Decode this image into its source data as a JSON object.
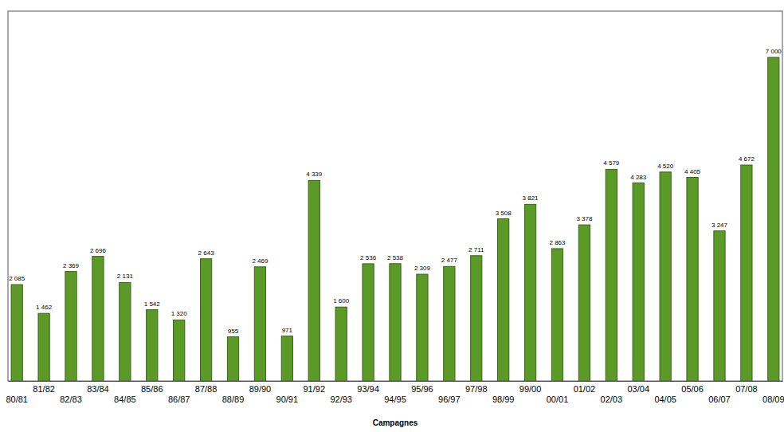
{
  "chart_data": {
    "type": "bar",
    "x_label": "Campagnes",
    "categories": [
      "80/81",
      "81/82",
      "82/83",
      "83/84",
      "84/85",
      "85/86",
      "86/87",
      "87/88",
      "88/89",
      "89/90",
      "90/91",
      "91/92",
      "92/93",
      "93/94",
      "94/95",
      "95/96",
      "96/97",
      "97/98",
      "98/99",
      "99/00",
      "00/01",
      "01/02",
      "02/03",
      "03/04",
      "04/05",
      "05/06",
      "06/07",
      "07/08",
      "08/09"
    ],
    "values": [
      2085,
      1462,
      2369,
      2696,
      2131,
      1542,
      1320,
      2643,
      955,
      2469,
      971,
      4339,
      1600,
      2536,
      2538,
      2309,
      2477,
      2711,
      3508,
      3821,
      2863,
      3378,
      4579,
      4283,
      4520,
      4405,
      3247,
      4672,
      7000
    ],
    "value_labels": [
      "2 085",
      "1 462",
      "2 369",
      "2 696",
      "2 131",
      "1 542",
      "1 320",
      "2 643",
      "955",
      "2 469",
      "971",
      "4 339",
      "1 600",
      "2 536",
      "2 538",
      "2 309",
      "2 477",
      "2 711",
      "3 508",
      "3 821",
      "2 863",
      "3 378",
      "4 579",
      "4 283",
      "4 520",
      "4 405",
      "3 247",
      "4 672",
      "7 000"
    ],
    "color": "#5b9a26",
    "ylim": [
      0,
      8000
    ],
    "data_labels": true,
    "tick_labels": "x",
    "grid": false
  }
}
